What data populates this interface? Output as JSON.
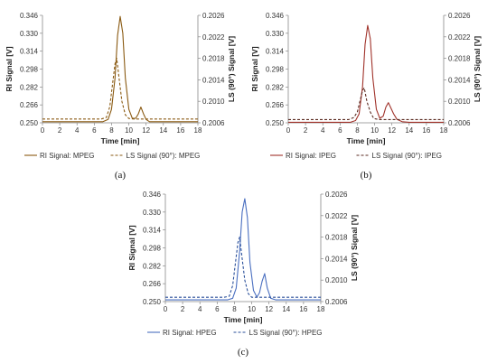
{
  "chart_data": [
    {
      "id": "a",
      "type": "line",
      "panel_label": "(a)",
      "xlabel": "Time [min]",
      "ylabel_left": "RI Signal [V]",
      "ylabel_right": "LS (90°) Signal [V]",
      "xlim": [
        0,
        18
      ],
      "ylim_left": [
        0.25,
        0.346
      ],
      "ylim_right": [
        0.2006,
        0.2026
      ],
      "x_ticks": [
        "0",
        "2",
        "4",
        "6",
        "8",
        "10",
        "12",
        "14",
        "16",
        "18"
      ],
      "y_left_ticks": [
        "0.346",
        "0.330",
        "0.314",
        "0.298",
        "0.282",
        "0.266",
        "0.250"
      ],
      "y_right_ticks": [
        "0.2026",
        "0.2022",
        "0.2018",
        "0.2014",
        "0.2010",
        "0.2006"
      ],
      "series": [
        {
          "name": "RI Signal: MPEG",
          "axis": "left",
          "color": "#8a5a12",
          "dash": "solid",
          "x": [
            0,
            7.0,
            7.6,
            8.0,
            8.4,
            8.7,
            9.0,
            9.3,
            9.6,
            10.0,
            10.4,
            10.8,
            11.1,
            11.4,
            11.7,
            12.0,
            12.4,
            13,
            18
          ],
          "y": [
            0.251,
            0.251,
            0.253,
            0.262,
            0.29,
            0.328,
            0.345,
            0.33,
            0.29,
            0.262,
            0.254,
            0.254,
            0.258,
            0.264,
            0.258,
            0.253,
            0.251,
            0.251,
            0.251
          ]
        },
        {
          "name": "LS Signal (90°): MPEG",
          "axis": "right",
          "color": "#8a5a12",
          "dash": "dashed",
          "x": [
            0,
            6.8,
            7.4,
            7.8,
            8.1,
            8.4,
            8.6,
            8.9,
            9.2,
            9.6,
            10.0,
            10.6,
            18
          ],
          "y": [
            0.20067,
            0.20067,
            0.2007,
            0.2009,
            0.2013,
            0.2017,
            0.2018,
            0.2014,
            0.201,
            0.20075,
            0.20068,
            0.20067,
            0.20067
          ]
        }
      ],
      "legend": [
        {
          "label": "RI Signal: MPEG",
          "dash": "solid"
        },
        {
          "label": "LS Signal (90°): MPEG",
          "dash": "dashed"
        }
      ]
    },
    {
      "id": "b",
      "type": "line",
      "panel_label": "(b)",
      "xlabel": "Time [min]",
      "ylabel_left": "RI Signal [V]",
      "ylabel_right": "LS (90°) Signal [V]",
      "xlim": [
        0,
        18
      ],
      "ylim_left": [
        0.25,
        0.346
      ],
      "ylim_right": [
        0.2006,
        0.2026
      ],
      "x_ticks": [
        "0",
        "2",
        "4",
        "6",
        "8",
        "10",
        "12",
        "14",
        "16",
        "18"
      ],
      "y_left_ticks": [
        "0.346",
        "0.330",
        "0.314",
        "0.298",
        "0.282",
        "0.266",
        "0.250"
      ],
      "y_right_ticks": [
        "0.2026",
        "0.2022",
        "0.2018",
        "0.2014",
        "0.2010",
        "0.2006"
      ],
      "series": [
        {
          "name": "RI Signal: IPEG",
          "axis": "left",
          "color": "#a0322a",
          "dash": "solid",
          "x": [
            0,
            7.2,
            7.8,
            8.2,
            8.6,
            8.9,
            9.2,
            9.5,
            9.8,
            10.2,
            10.6,
            11.0,
            11.3,
            11.6,
            11.9,
            12.2,
            12.6,
            13.2,
            14,
            18
          ],
          "y": [
            0.2505,
            0.2505,
            0.252,
            0.258,
            0.282,
            0.32,
            0.337,
            0.325,
            0.29,
            0.262,
            0.254,
            0.256,
            0.264,
            0.268,
            0.263,
            0.258,
            0.253,
            0.251,
            0.2505,
            0.2505
          ]
        },
        {
          "name": "LS Signal (90°): IPEG",
          "axis": "right",
          "color": "#5a2a20",
          "dash": "dashed",
          "x": [
            0,
            7.0,
            7.6,
            8.0,
            8.3,
            8.6,
            8.8,
            9.1,
            9.5,
            9.9,
            10.5,
            18
          ],
          "y": [
            0.20066,
            0.20066,
            0.2007,
            0.2008,
            0.201,
            0.2012,
            0.20125,
            0.201,
            0.2008,
            0.20068,
            0.20066,
            0.20066
          ]
        }
      ],
      "legend": [
        {
          "label": "RI Signal: IPEG",
          "dash": "solid"
        },
        {
          "label": "LS Signal (90°): IPEG",
          "dash": "dashed"
        }
      ]
    },
    {
      "id": "c",
      "type": "line",
      "panel_label": "(c)",
      "xlabel": "Time [min]",
      "ylabel_left": "RI Signal [V]",
      "ylabel_right": "LS (90°) Signal [V]",
      "xlim": [
        0,
        18
      ],
      "ylim_left": [
        0.25,
        0.346
      ],
      "ylim_right": [
        0.2006,
        0.2026
      ],
      "x_ticks": [
        "0",
        "2",
        "4",
        "6",
        "8",
        "10",
        "12",
        "14",
        "16",
        "18"
      ],
      "y_left_ticks": [
        "0.346",
        "0.330",
        "0.314",
        "0.298",
        "0.282",
        "0.266",
        "0.250"
      ],
      "y_right_ticks": [
        "0.2026",
        "0.2022",
        "0.2018",
        "0.2014",
        "0.2010",
        "0.2006"
      ],
      "series": [
        {
          "name": "RI Signal: HPEG",
          "axis": "left",
          "color": "#4a6fc0",
          "dash": "solid",
          "x": [
            0,
            7.2,
            7.8,
            8.2,
            8.6,
            8.9,
            9.2,
            9.5,
            9.8,
            10.2,
            10.6,
            10.9,
            11.2,
            11.5,
            11.8,
            12.2,
            12.8,
            18
          ],
          "y": [
            0.2515,
            0.2515,
            0.253,
            0.262,
            0.295,
            0.33,
            0.342,
            0.325,
            0.285,
            0.26,
            0.254,
            0.258,
            0.268,
            0.275,
            0.262,
            0.253,
            0.2515,
            0.2515
          ]
        },
        {
          "name": "LS Signal (90°): HPEG",
          "axis": "right",
          "color": "#2a4f9a",
          "dash": "dashed",
          "x": [
            0,
            6.8,
            7.4,
            7.8,
            8.1,
            8.4,
            8.6,
            8.9,
            9.2,
            9.6,
            10.0,
            10.6,
            18
          ],
          "y": [
            0.20068,
            0.20068,
            0.2007,
            0.2009,
            0.2013,
            0.2017,
            0.2018,
            0.2014,
            0.201,
            0.20075,
            0.20068,
            0.20068,
            0.20068
          ]
        }
      ],
      "legend": [
        {
          "label": "RI Signal: HPEG",
          "dash": "solid"
        },
        {
          "label": "LS Signal (90°): HPEG",
          "dash": "dashed"
        }
      ]
    }
  ]
}
